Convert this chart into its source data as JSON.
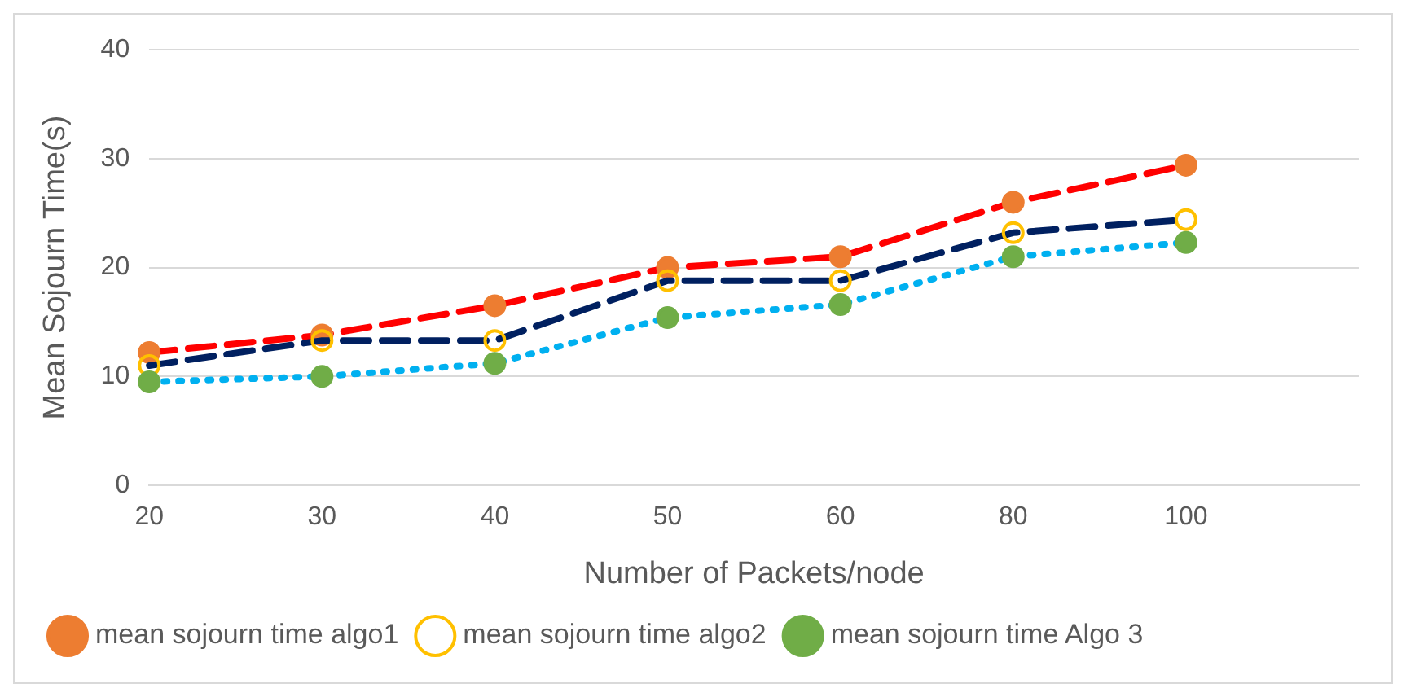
{
  "chart_data": {
    "type": "line",
    "xlabel": "Number of Packets/node",
    "ylabel": "Mean Sojourn Time(s)",
    "categories": [
      "20",
      "30",
      "40",
      "50",
      "60",
      "80",
      "100",
      null
    ],
    "series": [
      {
        "name": "mean sojourn time algo1",
        "color": "#ff0000",
        "line_style": "dashed",
        "values": [
          12.2,
          13.8,
          16.5,
          20,
          21,
          26,
          29.4,
          null
        ]
      },
      {
        "name": "mean sojourn time algo2",
        "color": "#002060",
        "line_style": "dashed",
        "values": [
          11,
          13.3,
          13.3,
          18.8,
          18.8,
          23.2,
          24.4,
          null
        ]
      },
      {
        "name": "mean sojourn time Algo 3",
        "color": "#00b0f0",
        "line_style": "dotted",
        "values": [
          9.5,
          10,
          11.2,
          15.4,
          16.6,
          21,
          22.3,
          null
        ]
      }
    ],
    "ylim": [
      0,
      40
    ],
    "yticks": [
      0,
      10,
      20,
      30,
      40
    ],
    "grid": "y",
    "legend": "bottom",
    "marker": "circle"
  }
}
